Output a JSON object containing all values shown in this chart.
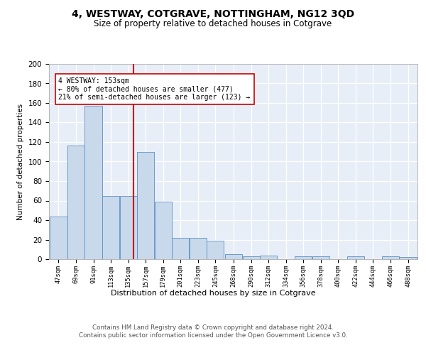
{
  "title1": "4, WESTWAY, COTGRAVE, NOTTINGHAM, NG12 3QD",
  "title2": "Size of property relative to detached houses in Cotgrave",
  "xlabel": "Distribution of detached houses by size in Cotgrave",
  "ylabel": "Number of detached properties",
  "bins": [
    47,
    69,
    91,
    113,
    135,
    157,
    179,
    201,
    223,
    245,
    268,
    290,
    312,
    334,
    356,
    378,
    400,
    422,
    444,
    466,
    488
  ],
  "counts": [
    44,
    116,
    157,
    65,
    65,
    110,
    59,
    22,
    22,
    19,
    5,
    3,
    4,
    0,
    3,
    3,
    0,
    3,
    0,
    3,
    2
  ],
  "bar_color": "#c9d9ec",
  "bar_edge_color": "#5a8fc2",
  "property_size": 153,
  "vline_color": "#cc0000",
  "annotation_text": "4 WESTWAY: 153sqm\n← 80% of detached houses are smaller (477)\n21% of semi-detached houses are larger (123) →",
  "annotation_box_color": "#ffffff",
  "annotation_box_edge_color": "#cc0000",
  "ylim": [
    0,
    200
  ],
  "yticks": [
    0,
    20,
    40,
    60,
    80,
    100,
    120,
    140,
    160,
    180,
    200
  ],
  "background_color": "#e8eef7",
  "footer_text": "Contains HM Land Registry data © Crown copyright and database right 2024.\nContains public sector information licensed under the Open Government Licence v3.0.",
  "tick_labels": [
    "47sqm",
    "69sqm",
    "91sqm",
    "113sqm",
    "135sqm",
    "157sqm",
    "179sqm",
    "201sqm",
    "223sqm",
    "245sqm",
    "268sqm",
    "290sqm",
    "312sqm",
    "334sqm",
    "356sqm",
    "378sqm",
    "400sqm",
    "422sqm",
    "444sqm",
    "466sqm",
    "488sqm"
  ]
}
